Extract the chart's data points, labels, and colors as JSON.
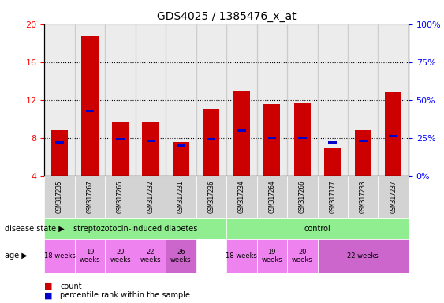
{
  "title": "GDS4025 / 1385476_x_at",
  "samples": [
    "GSM317235",
    "GSM317267",
    "GSM317265",
    "GSM317232",
    "GSM317231",
    "GSM317236",
    "GSM317234",
    "GSM317264",
    "GSM317266",
    "GSM317177",
    "GSM317233",
    "GSM317237"
  ],
  "count_values": [
    8.8,
    18.8,
    9.7,
    9.7,
    7.6,
    11.1,
    13.0,
    11.6,
    11.7,
    7.0,
    8.8,
    12.9
  ],
  "percentile_values": [
    22,
    43,
    24,
    23,
    20,
    24,
    30,
    25,
    25,
    22,
    23,
    26
  ],
  "ylim_left": [
    4,
    20
  ],
  "ylim_right": [
    0,
    100
  ],
  "yticks_left": [
    4,
    8,
    12,
    16,
    20
  ],
  "yticks_right": [
    0,
    25,
    50,
    75,
    100
  ],
  "bar_color": "#cc0000",
  "percentile_color": "#0000cc",
  "grid_color": "#000000",
  "background_plot": "#ffffff",
  "disease_state_groups": [
    {
      "label": "streptozotocin-induced diabetes",
      "start": 0,
      "end": 6,
      "color": "#90ee90"
    },
    {
      "label": "control",
      "start": 6,
      "end": 12,
      "color": "#90ee90"
    }
  ],
  "age_groups": [
    {
      "label": "18 weeks",
      "start": 0,
      "end": 1,
      "color": "#ee82ee"
    },
    {
      "label": "19\nweeks",
      "start": 1,
      "end": 2,
      "color": "#ee82ee"
    },
    {
      "label": "20\nweeks",
      "start": 2,
      "end": 3,
      "color": "#ee82ee"
    },
    {
      "label": "22\nweeks",
      "start": 3,
      "end": 4,
      "color": "#ee82ee"
    },
    {
      "label": "26\nweeks",
      "start": 4,
      "end": 5,
      "color": "#dd88dd"
    },
    {
      "label": "18 weeks",
      "start": 6,
      "end": 7,
      "color": "#ee82ee"
    },
    {
      "label": "19\nweeks",
      "start": 7,
      "end": 8,
      "color": "#ee82ee"
    },
    {
      "label": "20\nweeks",
      "start": 8,
      "end": 9,
      "color": "#ee82ee"
    },
    {
      "label": "22 weeks",
      "start": 9,
      "end": 12,
      "color": "#dd88dd"
    }
  ],
  "tick_label_bg": "#d3d3d3",
  "legend_count_color": "#cc0000",
  "legend_percentile_color": "#0000cc"
}
